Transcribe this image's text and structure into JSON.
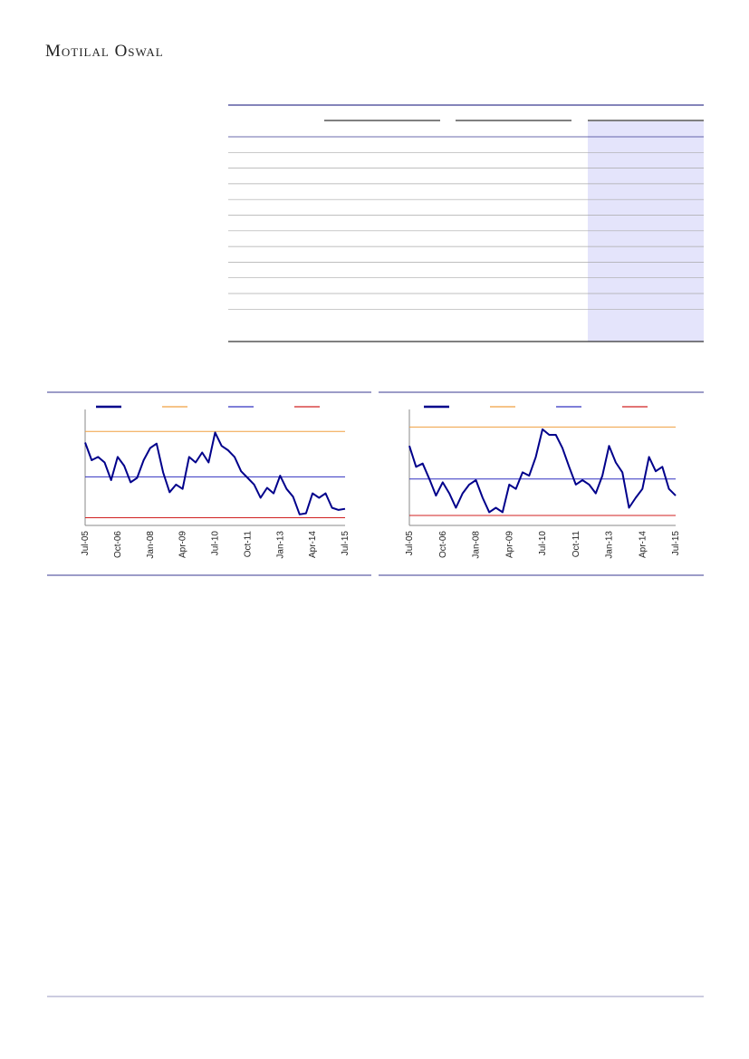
{
  "header": {
    "brand": "Motilal Oswal"
  },
  "charts": [
    {
      "chart_data": {
        "type": "line",
        "categories": [
          "Jul-05",
          null,
          null,
          null,
          null,
          "Oct-06",
          null,
          null,
          null,
          null,
          "Jan-08",
          null,
          null,
          null,
          null,
          "Apr-09",
          null,
          null,
          null,
          null,
          "Jul-10",
          null,
          null,
          null,
          null,
          "Oct-11",
          null,
          null,
          null,
          null,
          "Jan-13",
          null,
          null,
          null,
          null,
          "Apr-14",
          null,
          null,
          null,
          null,
          "Jul-15"
        ],
        "series": [
          {
            "color": "#00008b",
            "values": [
              75,
              59,
              62,
              57,
              41,
              62,
              54,
              39,
              43,
              59,
              70,
              74,
              48,
              30,
              37,
              33,
              62,
              57,
              66,
              57,
              84,
              72,
              68,
              62,
              49,
              43,
              37,
              25,
              34,
              29,
              45,
              33,
              26,
              10,
              11,
              29,
              25,
              29,
              16,
              14,
              15
            ]
          }
        ],
        "reference_lines": [
          {
            "value": 85,
            "color": "#f0a040"
          },
          {
            "value": 44,
            "color": "#3030c0"
          },
          {
            "value": 7,
            "color": "#d02020"
          }
        ],
        "ylim": [
          0,
          100
        ]
      }
    },
    {
      "chart_data": {
        "type": "line",
        "categories": [
          "Jul-05",
          null,
          null,
          null,
          null,
          "Oct-06",
          null,
          null,
          null,
          null,
          "Jan-08",
          null,
          null,
          null,
          null,
          "Apr-09",
          null,
          null,
          null,
          null,
          "Jul-10",
          null,
          null,
          null,
          null,
          "Oct-11",
          null,
          null,
          null,
          null,
          "Jan-13",
          null,
          null,
          null,
          null,
          "Apr-14",
          null,
          null,
          null,
          null,
          "Jul-15"
        ],
        "series": [
          {
            "color": "#00008b",
            "values": [
              72,
              53,
              56,
              42,
              27,
              39,
              29,
              16,
              29,
              37,
              41,
              25,
              12,
              16,
              12,
              37,
              33,
              48,
              45,
              62,
              87,
              82,
              82,
              70,
              53,
              37,
              41,
              37,
              29,
              45,
              72,
              57,
              48,
              16,
              25,
              33,
              62,
              49,
              53,
              33,
              27
            ]
          }
        ],
        "reference_lines": [
          {
            "value": 89,
            "color": "#f0a040"
          },
          {
            "value": 42,
            "color": "#3030c0"
          },
          {
            "value": 9,
            "color": "#d02020"
          }
        ],
        "ylim": [
          0,
          100
        ]
      }
    }
  ]
}
